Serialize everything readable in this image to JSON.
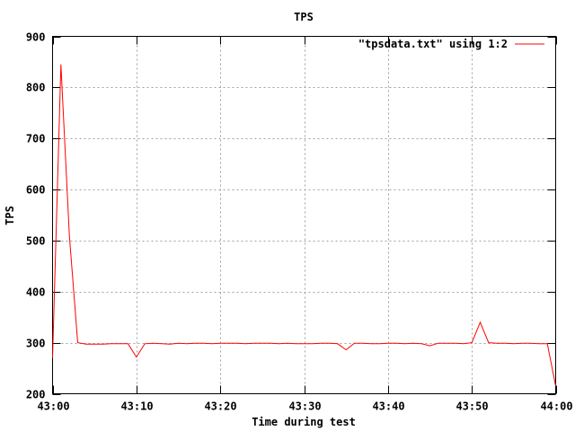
{
  "chart_data": {
    "type": "line",
    "title": "TPS",
    "xlabel": "Time during test",
    "ylabel": "TPS",
    "xlim": [
      "43:00",
      "44:00"
    ],
    "ylim": [
      200,
      900
    ],
    "grid": true,
    "legend_position": "top-right",
    "x_ticks": [
      "43:00",
      "43:10",
      "43:20",
      "43:30",
      "43:40",
      "43:50",
      "44:00"
    ],
    "y_ticks": [
      200,
      300,
      400,
      500,
      600,
      700,
      800,
      900
    ],
    "series": [
      {
        "name": "\"tpsdata.txt\" using 1:2",
        "color": "#ff0000",
        "x": [
          "43:00",
          "43:01",
          "43:02",
          "43:03",
          "43:04",
          "43:05",
          "43:06",
          "43:07",
          "43:08",
          "43:09",
          "43:10",
          "43:11",
          "43:12",
          "43:13",
          "43:14",
          "43:15",
          "43:16",
          "43:17",
          "43:18",
          "43:19",
          "43:20",
          "43:21",
          "43:22",
          "43:23",
          "43:24",
          "43:25",
          "43:26",
          "43:27",
          "43:28",
          "43:29",
          "43:30",
          "43:31",
          "43:32",
          "43:33",
          "43:34",
          "43:35",
          "43:36",
          "43:37",
          "43:38",
          "43:39",
          "43:40",
          "43:41",
          "43:42",
          "43:43",
          "43:44",
          "43:45",
          "43:46",
          "43:47",
          "43:48",
          "43:49",
          "43:50",
          "43:51",
          "43:52",
          "43:53",
          "43:54",
          "43:55",
          "43:56",
          "43:57",
          "43:58",
          "43:59",
          "44:00"
        ],
        "values": [
          270,
          845,
          510,
          300,
          297,
          297,
          297,
          298,
          298,
          298,
          272,
          298,
          299,
          298,
          297,
          299,
          298,
          299,
          299,
          298,
          299,
          299,
          299,
          298,
          299,
          299,
          299,
          298,
          299,
          298,
          298,
          298,
          299,
          299,
          298,
          286,
          299,
          299,
          298,
          298,
          299,
          299,
          298,
          299,
          298,
          294,
          299,
          299,
          299,
          298,
          300,
          340,
          300,
          299,
          299,
          298,
          299,
          299,
          298,
          298,
          215
        ]
      }
    ]
  }
}
